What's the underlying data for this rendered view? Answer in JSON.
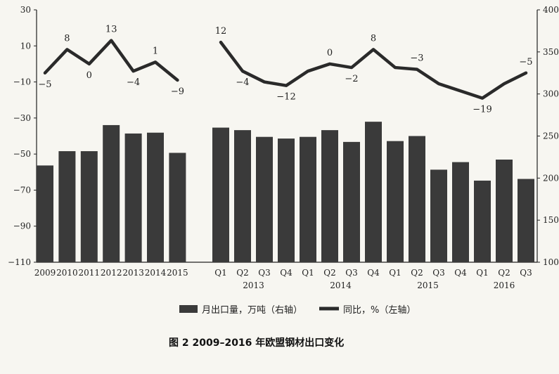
{
  "chart_data": {
    "type": "bar",
    "title": "",
    "caption": "图 2  2009–2016 年欧盟钢材出口变化",
    "categories": [
      "2009",
      "2010",
      "2011",
      "2012",
      "2013",
      "2014",
      "2015",
      "Q1",
      "Q2",
      "Q3",
      "Q4",
      "Q1",
      "Q2",
      "Q3",
      "Q4",
      "Q1",
      "Q2",
      "Q3",
      "Q4",
      "Q1",
      "Q2",
      "Q3"
    ],
    "year_groups": [
      {
        "label": "2013",
        "from": 7,
        "to": 10
      },
      {
        "label": "2014",
        "from": 11,
        "to": 14
      },
      {
        "label": "2015",
        "from": 15,
        "to": 18
      },
      {
        "label": "2016",
        "from": 19,
        "to": 21
      }
    ],
    "series": [
      {
        "name": "月出口量，万吨（右轴）",
        "type": "bar",
        "axis": "right",
        "values": [
          215,
          232,
          232,
          263,
          253,
          254,
          230,
          260,
          257,
          249,
          247,
          249,
          257,
          243,
          267,
          244,
          250,
          210,
          219,
          197,
          222,
          199
        ],
        "color": "#3a3a3a"
      },
      {
        "name": "同比，%（左轴）",
        "type": "line",
        "axis": "left",
        "values": [
          -5,
          8,
          0,
          13,
          -4,
          1,
          -9,
          12,
          -4,
          -10,
          -12,
          -4,
          0,
          -2,
          8,
          -2,
          -3,
          -11,
          -15,
          -19,
          -11,
          -5
        ],
        "labels": [
          "-5",
          "8",
          "0",
          "13",
          "-4",
          "1",
          "-9",
          "12",
          "-4",
          "",
          "-12",
          "",
          "0",
          "-2",
          "8",
          "",
          "-3",
          "",
          "",
          "-19",
          "",
          "-5"
        ],
        "color": "#2a2a2a"
      }
    ],
    "left_axis": {
      "min": -110,
      "max": 30,
      "ticks": [
        "30",
        "10",
        "-10",
        "-30",
        "-50",
        "-70",
        "-90",
        "-110"
      ]
    },
    "right_axis": {
      "min": 100,
      "max": 400,
      "ticks": [
        "400",
        "350",
        "300",
        "250",
        "200",
        "150",
        "100"
      ]
    },
    "legend_position": "bottom",
    "grid": false
  }
}
